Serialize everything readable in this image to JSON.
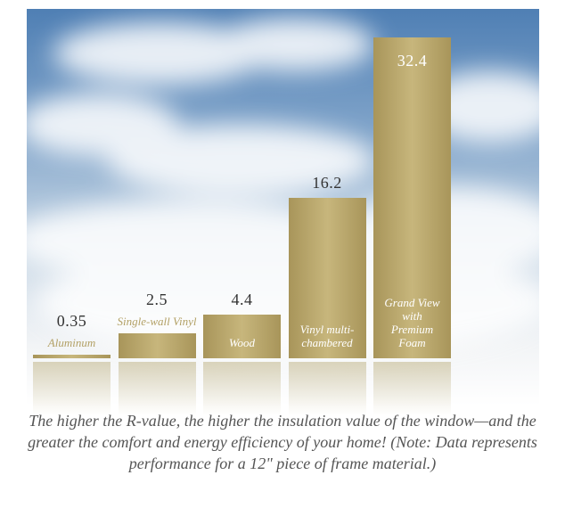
{
  "chart_data": {
    "type": "bar",
    "categories": [
      "Aluminum",
      "Single-wall Vinyl",
      "Wood",
      "Vinyl multi-chambered",
      "Grand View with Premium Foam"
    ],
    "values": [
      0.35,
      2.5,
      4.4,
      16.2,
      32.4
    ],
    "color": "#b3a166",
    "caption": "The higher the R-value, the higher the insulation value of the window—and the greater the comfort and energy efficiency of your home!  (Note: Data represents performance for a 12\" piece of frame material.)"
  }
}
